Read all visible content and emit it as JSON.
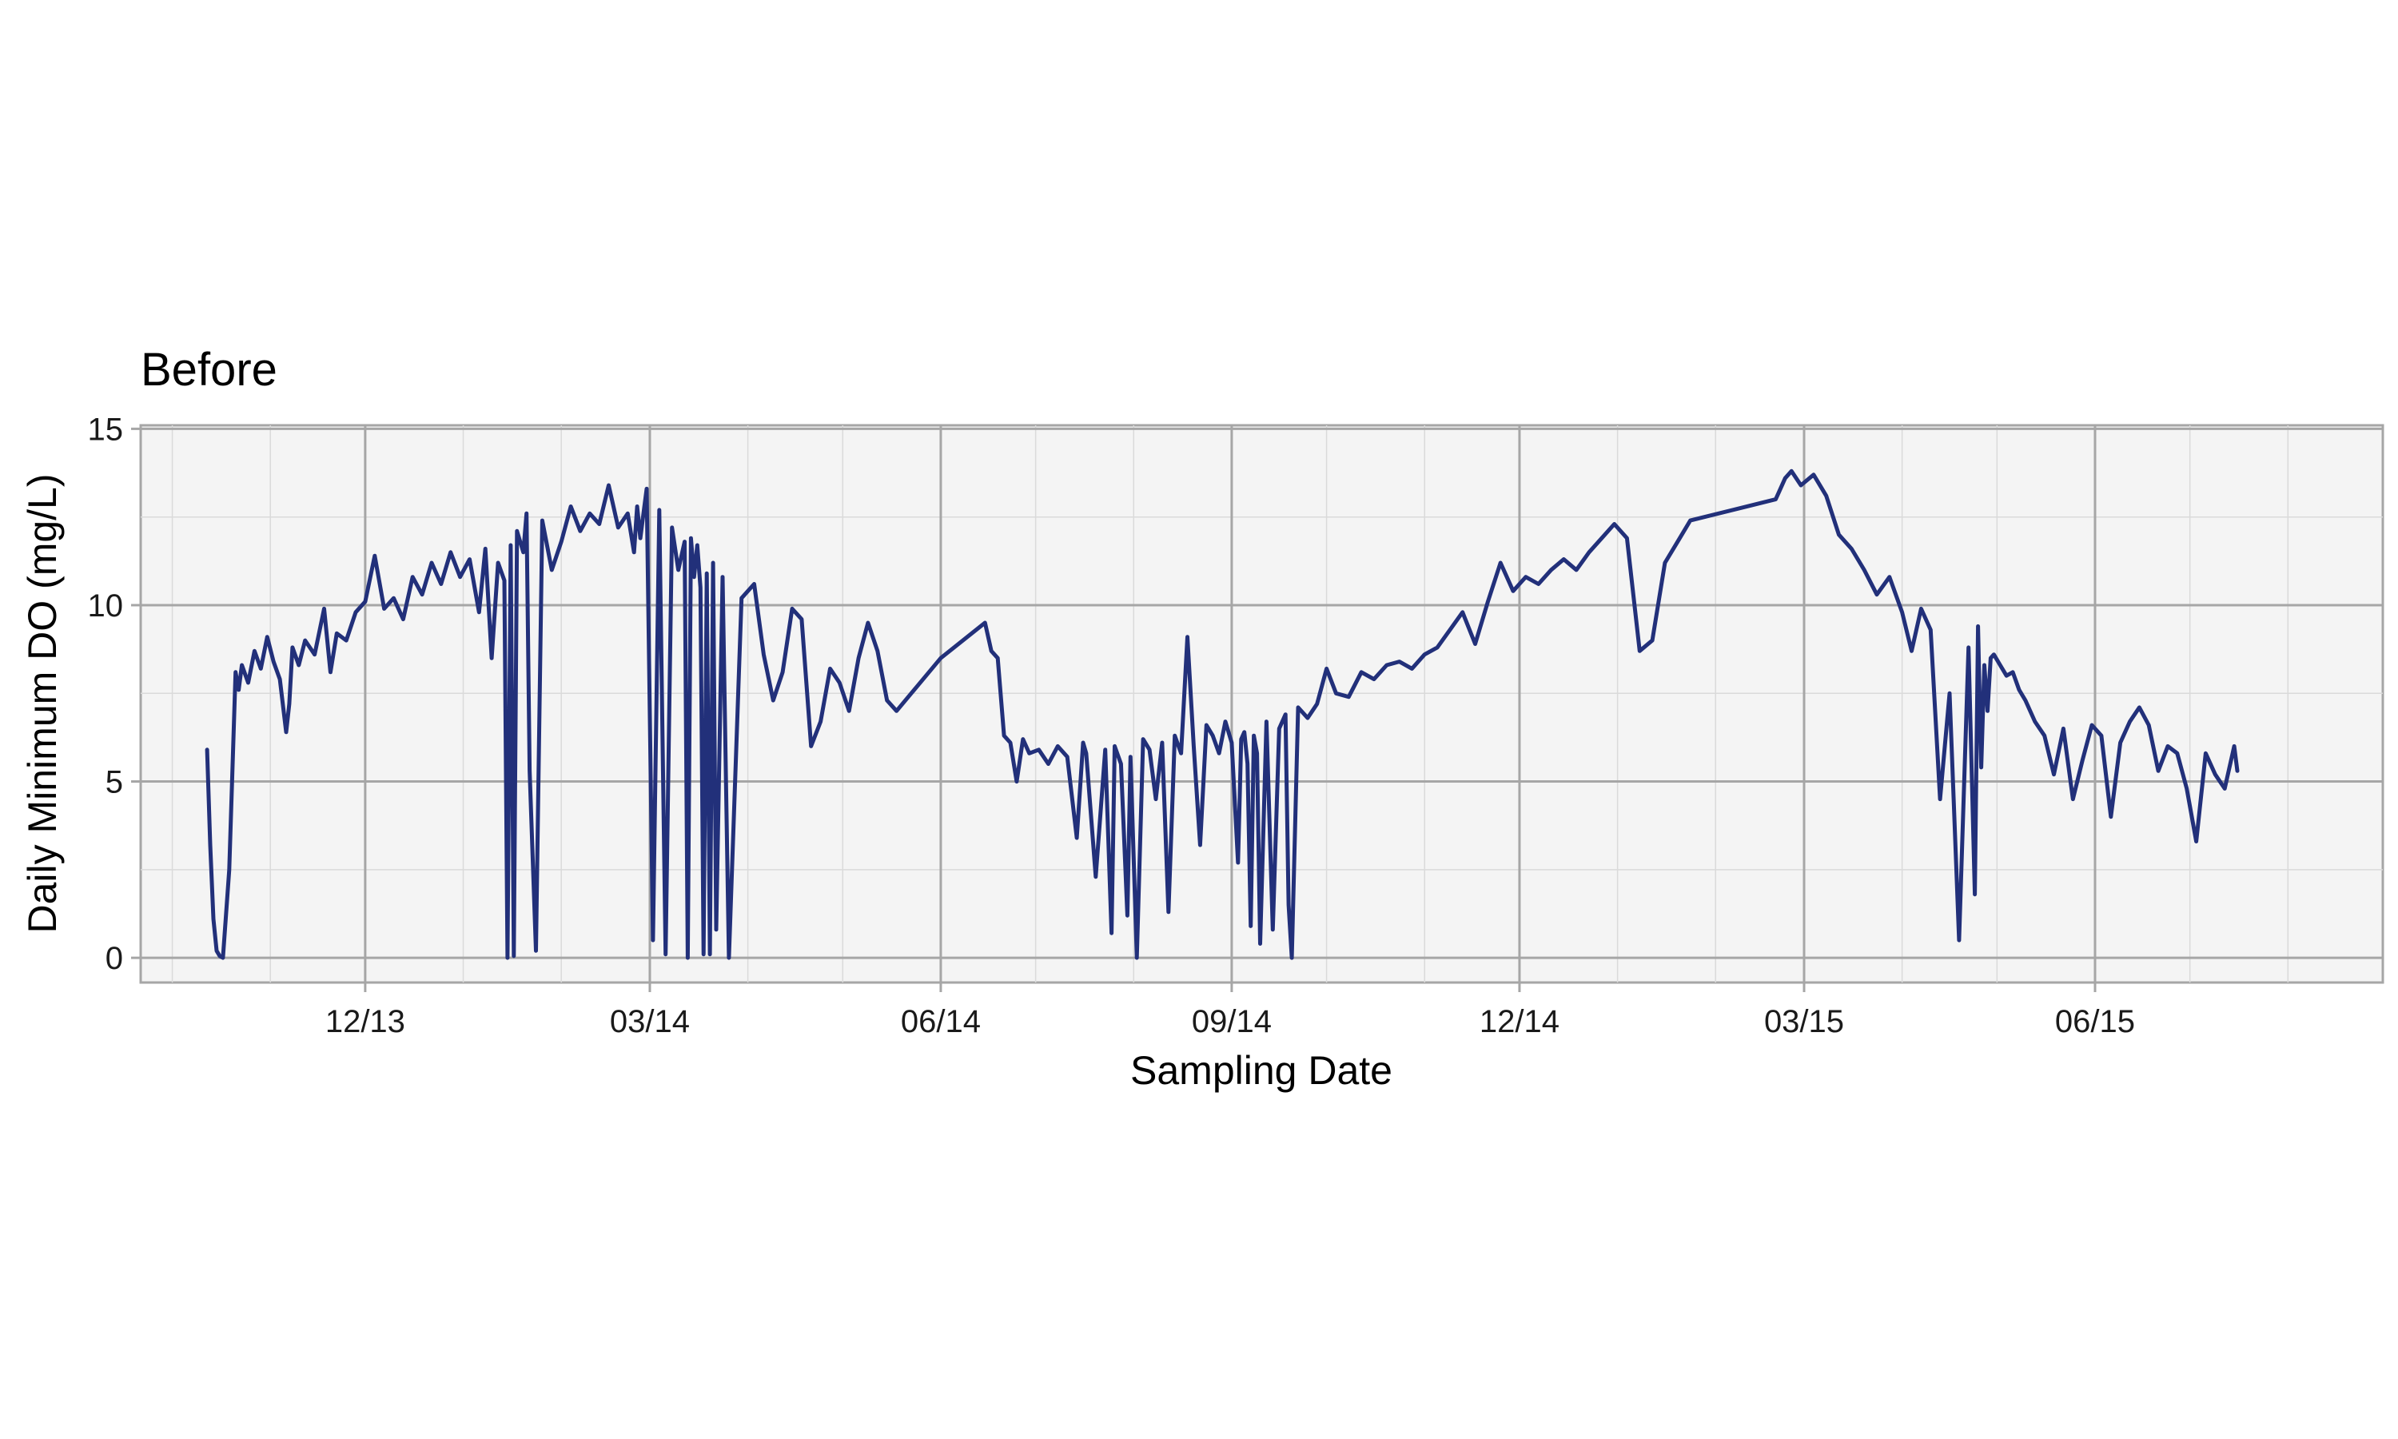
{
  "chart_data": {
    "type": "line",
    "title": "Before",
    "xlabel": "Sampling Date",
    "ylabel": "Daily Minimum DO (mg/L)",
    "x_ticks": [
      "12/13",
      "03/14",
      "06/14",
      "09/14",
      "12/14",
      "03/15",
      "06/15"
    ],
    "y_ticks": [
      "0",
      "5",
      "10",
      "15"
    ],
    "ylim": [
      -0.7,
      15.1
    ],
    "xlim": [
      "2013-09-21",
      "2015-08-31"
    ],
    "grid": true,
    "series_color": "#22307A",
    "series": [
      {
        "x": [
          "2013-10-12",
          "2013-10-13",
          "2013-10-14",
          "2013-10-15",
          "2013-10-16",
          "2013-10-17",
          "2013-10-19",
          "2013-10-21",
          "2013-10-22",
          "2013-10-23",
          "2013-10-25",
          "2013-10-27",
          "2013-10-29",
          "2013-10-31",
          "2013-11-02",
          "2013-11-04",
          "2013-11-06",
          "2013-11-07",
          "2013-11-08",
          "2013-11-10",
          "2013-11-12",
          "2013-11-15",
          "2013-11-18",
          "2013-11-20",
          "2013-11-22",
          "2013-11-25",
          "2013-11-28",
          "2013-12-01",
          "2013-12-04",
          "2013-12-07",
          "2013-12-10",
          "2013-12-13",
          "2013-12-16",
          "2013-12-19",
          "2013-12-22",
          "2013-12-25",
          "2013-12-28",
          "2013-12-31",
          "2014-01-03",
          "2014-01-06",
          "2014-01-08",
          "2014-01-10",
          "2014-01-12",
          "2014-01-14",
          "2014-01-15",
          "2014-01-16",
          "2014-01-17",
          "2014-01-18",
          "2014-01-20",
          "2014-01-21",
          "2014-01-22",
          "2014-01-24",
          "2014-01-26",
          "2014-01-29",
          "2014-02-01",
          "2014-02-04",
          "2014-02-07",
          "2014-02-10",
          "2014-02-13",
          "2014-02-16",
          "2014-02-19",
          "2014-02-22",
          "2014-02-24",
          "2014-02-25",
          "2014-02-26",
          "2014-02-27",
          "2014-02-28",
          "2014-03-02",
          "2014-03-04",
          "2014-03-06",
          "2014-03-08",
          "2014-03-10",
          "2014-03-12",
          "2014-03-13",
          "2014-03-14",
          "2014-03-15",
          "2014-03-16",
          "2014-03-17",
          "2014-03-18",
          "2014-03-19",
          "2014-03-20",
          "2014-03-21",
          "2014-03-22",
          "2014-03-24",
          "2014-03-26",
          "2014-03-30",
          "2014-04-03",
          "2014-04-06",
          "2014-04-09",
          "2014-04-12",
          "2014-04-15",
          "2014-04-18",
          "2014-04-21",
          "2014-04-24",
          "2014-04-27",
          "2014-04-30",
          "2014-05-03",
          "2014-05-06",
          "2014-05-09",
          "2014-05-12",
          "2014-05-15",
          "2014-05-18",
          "2014-06-01",
          "2014-06-15",
          "2014-06-17",
          "2014-06-19",
          "2014-06-21",
          "2014-06-23",
          "2014-06-25",
          "2014-06-27",
          "2014-06-29",
          "2014-07-02",
          "2014-07-05",
          "2014-07-08",
          "2014-07-11",
          "2014-07-14",
          "2014-07-16",
          "2014-07-17",
          "2014-07-20",
          "2014-07-23",
          "2014-07-25",
          "2014-07-26",
          "2014-07-28",
          "2014-07-30",
          "2014-07-31",
          "2014-08-02",
          "2014-08-04",
          "2014-08-06",
          "2014-08-08",
          "2014-08-10",
          "2014-08-12",
          "2014-08-14",
          "2014-08-16",
          "2014-08-18",
          "2014-08-20",
          "2014-08-22",
          "2014-08-24",
          "2014-08-26",
          "2014-08-28",
          "2014-08-30",
          "2014-09-01",
          "2014-09-03",
          "2014-09-04",
          "2014-09-05",
          "2014-09-06",
          "2014-09-07",
          "2014-09-08",
          "2014-09-09",
          "2014-09-10",
          "2014-09-12",
          "2014-09-14",
          "2014-09-16",
          "2014-09-18",
          "2014-09-19",
          "2014-09-20",
          "2014-09-22",
          "2014-09-25",
          "2014-09-28",
          "2014-10-01",
          "2014-10-04",
          "2014-10-08",
          "2014-10-12",
          "2014-10-16",
          "2014-10-20",
          "2014-10-24",
          "2014-10-28",
          "2014-11-01",
          "2014-11-05",
          "2014-11-09",
          "2014-11-13",
          "2014-11-17",
          "2014-11-21",
          "2014-11-25",
          "2014-11-29",
          "2014-12-03",
          "2014-12-07",
          "2014-12-11",
          "2014-12-15",
          "2014-12-19",
          "2014-12-23",
          "2014-12-27",
          "2014-12-31",
          "2015-01-04",
          "2015-01-08",
          "2015-01-12",
          "2015-01-16",
          "2015-01-20",
          "2015-01-24",
          "2015-02-20",
          "2015-02-21",
          "2015-02-23",
          "2015-02-25",
          "2015-02-28",
          "2015-03-04",
          "2015-03-08",
          "2015-03-12",
          "2015-03-16",
          "2015-03-20",
          "2015-03-24",
          "2015-03-28",
          "2015-04-01",
          "2015-04-04",
          "2015-04-07",
          "2015-04-10",
          "2015-04-13",
          "2015-04-16",
          "2015-04-19",
          "2015-04-22",
          "2015-04-24",
          "2015-04-25",
          "2015-04-26",
          "2015-04-27",
          "2015-04-28",
          "2015-04-29",
          "2015-04-30",
          "2015-05-02",
          "2015-05-04",
          "2015-05-06",
          "2015-05-08",
          "2015-05-10",
          "2015-05-13",
          "2015-05-16",
          "2015-05-19",
          "2015-05-22",
          "2015-05-25",
          "2015-05-28",
          "2015-05-31",
          "2015-06-03",
          "2015-06-06",
          "2015-06-09",
          "2015-06-12",
          "2015-06-15",
          "2015-06-18",
          "2015-06-21",
          "2015-06-24",
          "2015-06-27",
          "2015-06-30",
          "2015-07-03",
          "2015-07-06",
          "2015-07-09",
          "2015-07-12",
          "2015-07-15",
          "2015-07-16"
        ],
        "y": [
          5.9,
          3.2,
          1.1,
          0.2,
          0.05,
          0.0,
          2.5,
          8.1,
          7.6,
          8.3,
          7.8,
          8.7,
          8.2,
          9.1,
          8.4,
          7.9,
          6.4,
          7.2,
          8.8,
          8.3,
          9.0,
          8.6,
          9.9,
          8.1,
          9.2,
          9.0,
          9.8,
          10.1,
          11.4,
          9.9,
          10.2,
          9.6,
          10.8,
          10.3,
          11.2,
          10.6,
          11.5,
          10.8,
          11.3,
          9.8,
          11.6,
          8.5,
          11.2,
          10.7,
          0.0,
          11.7,
          0.05,
          12.1,
          11.5,
          12.6,
          5.3,
          0.2,
          12.4,
          11.0,
          11.8,
          12.8,
          12.1,
          12.6,
          12.3,
          13.4,
          12.2,
          12.6,
          11.5,
          12.8,
          11.9,
          12.6,
          13.3,
          0.5,
          12.7,
          0.1,
          12.2,
          11.0,
          11.8,
          0.0,
          11.9,
          10.8,
          11.7,
          10.5,
          0.1,
          10.9,
          0.1,
          11.2,
          0.8,
          10.8,
          0.0,
          10.2,
          10.6,
          8.6,
          7.3,
          8.1,
          9.9,
          9.6,
          6.0,
          6.7,
          8.2,
          7.8,
          7.0,
          8.5,
          9.5,
          8.7,
          7.3,
          7.0,
          8.5,
          9.5,
          8.7,
          8.5,
          6.3,
          6.1,
          5.0,
          6.2,
          5.8,
          5.9,
          5.5,
          6.0,
          5.7,
          3.4,
          6.1,
          5.8,
          2.3,
          5.9,
          0.7,
          6.0,
          5.5,
          1.2,
          5.7,
          0.0,
          6.2,
          5.9,
          4.5,
          6.1,
          1.3,
          6.3,
          5.8,
          9.1,
          6.0,
          3.2,
          6.6,
          6.3,
          5.8,
          6.7,
          6.1,
          2.7,
          6.2,
          6.4,
          5.5,
          0.9,
          6.3,
          5.8,
          0.4,
          6.7,
          0.8,
          6.5,
          6.9,
          1.5,
          0.0,
          7.1,
          6.8,
          7.2,
          8.2,
          7.5,
          7.4,
          8.1,
          7.9,
          8.3,
          8.4,
          8.2,
          8.6,
          8.8,
          9.3,
          9.8,
          8.9,
          10.1,
          11.2,
          10.4,
          10.8,
          10.6,
          11.0,
          11.3,
          11.0,
          11.5,
          11.9,
          12.3,
          11.9,
          8.7,
          9.0,
          11.2,
          11.8,
          12.4,
          13.0,
          13.2,
          13.6,
          13.8,
          13.4,
          13.7,
          13.1,
          12.0,
          11.6,
          11.0,
          10.3,
          10.8,
          9.8,
          8.7,
          9.9,
          9.3,
          4.5,
          7.5,
          0.5,
          8.8,
          1.8,
          9.4,
          5.4,
          8.3,
          7.0,
          8.5,
          8.6,
          8.3,
          8.0,
          8.1,
          7.6,
          7.3,
          6.7,
          6.3,
          5.2,
          6.5,
          4.5,
          5.6,
          6.6,
          6.3,
          4.0,
          6.1,
          6.7,
          7.1,
          6.6,
          5.3,
          6.0,
          5.8,
          4.8,
          3.3,
          5.8,
          5.2,
          4.8,
          6.0,
          5.3
        ]
      }
    ]
  }
}
